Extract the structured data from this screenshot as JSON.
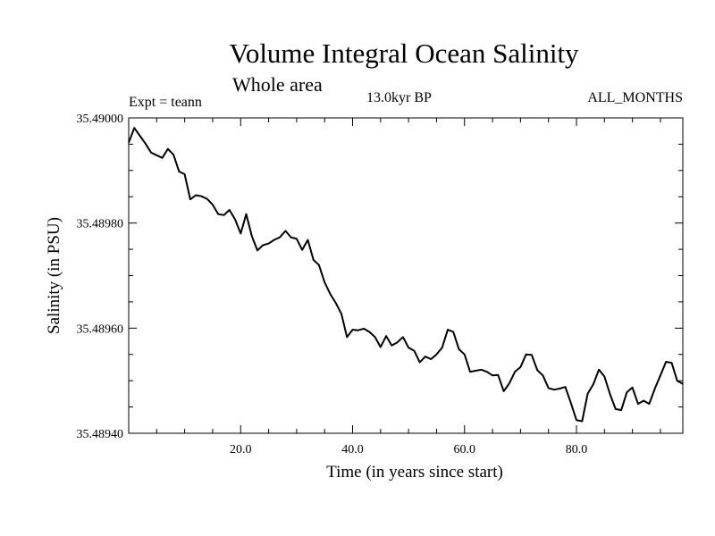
{
  "chart_data": {
    "type": "line",
    "title": "Volume Integral Ocean Salinity",
    "subtitle": "Whole area",
    "annotations": {
      "experiment": "Expt = teann",
      "period": "13.0kyr BP",
      "months": "ALL_MONTHS"
    },
    "xlabel": "Time (in years since start)",
    "ylabel": "Salinity (in PSU)",
    "xlim": [
      0,
      99
    ],
    "ylim": [
      35.4894,
      35.49
    ],
    "x_ticks": [
      20,
      40,
      60,
      80
    ],
    "x_tick_labels": [
      "20.0",
      "40.0",
      "60.0",
      "80.0"
    ],
    "y_ticks": [
      35.4894,
      35.4896,
      35.4898,
      35.49
    ],
    "y_tick_labels": [
      "35.48940",
      "35.48960",
      "35.48980",
      "35.49000"
    ],
    "grid": false,
    "series": [
      {
        "name": "Salinity",
        "x": [
          0,
          1,
          2,
          3,
          4,
          5,
          6,
          7,
          8,
          9,
          10,
          11,
          12,
          13,
          14,
          15,
          16,
          17,
          18,
          19,
          20,
          21,
          22,
          23,
          24,
          25,
          26,
          27,
          28,
          29,
          30,
          31,
          32,
          33,
          34,
          35,
          36,
          37,
          38,
          39,
          40,
          41,
          42,
          43,
          44,
          45,
          46,
          47,
          48,
          49,
          50,
          51,
          52,
          53,
          54,
          55,
          56,
          57,
          58,
          59,
          60,
          61,
          62,
          63,
          64,
          65,
          66,
          67,
          68,
          69,
          70,
          71,
          72,
          73,
          74,
          75,
          76,
          77,
          78,
          79,
          80,
          81,
          82,
          83,
          84,
          85,
          86,
          87,
          88,
          89,
          90,
          91,
          92,
          93,
          94,
          95,
          96,
          97,
          98,
          99
        ],
        "values": [
          35.489953,
          35.489981,
          35.489966,
          35.489951,
          35.489934,
          35.489929,
          35.489924,
          35.489941,
          35.48993,
          35.489898,
          35.489893,
          35.489845,
          35.489853,
          35.489851,
          35.489846,
          35.489835,
          35.489817,
          35.489815,
          35.489825,
          35.489807,
          35.48978,
          35.489817,
          35.489775,
          35.489748,
          35.489758,
          35.489761,
          35.489768,
          35.489773,
          35.489785,
          35.489773,
          35.48977,
          35.489749,
          35.489768,
          35.48973,
          35.48972,
          35.489687,
          35.489665,
          35.489648,
          35.489627,
          35.489583,
          35.489597,
          35.489596,
          35.489599,
          35.489593,
          35.489583,
          35.489564,
          35.489585,
          35.489567,
          35.489573,
          35.489583,
          35.489563,
          35.489557,
          35.489535,
          35.489546,
          35.489541,
          35.48955,
          35.489563,
          35.489597,
          35.489593,
          35.48956,
          35.48955,
          35.489517,
          35.489519,
          35.489521,
          35.489517,
          35.48951,
          35.489511,
          35.48948,
          35.489495,
          35.489517,
          35.489526,
          35.48955,
          35.489549,
          35.48952,
          35.48951,
          35.489486,
          35.489483,
          35.489485,
          35.489488,
          35.489458,
          35.489425,
          35.489423,
          35.489475,
          35.489493,
          35.489521,
          35.489508,
          35.489474,
          35.489446,
          35.489444,
          35.489478,
          35.489487,
          35.489456,
          35.489462,
          35.489456,
          35.489485,
          35.48951,
          35.489536,
          35.489534,
          35.4895,
          35.489494
        ]
      }
    ],
    "colors": {
      "line": "#000000",
      "axis": "#000000",
      "background": "#ffffff"
    }
  }
}
